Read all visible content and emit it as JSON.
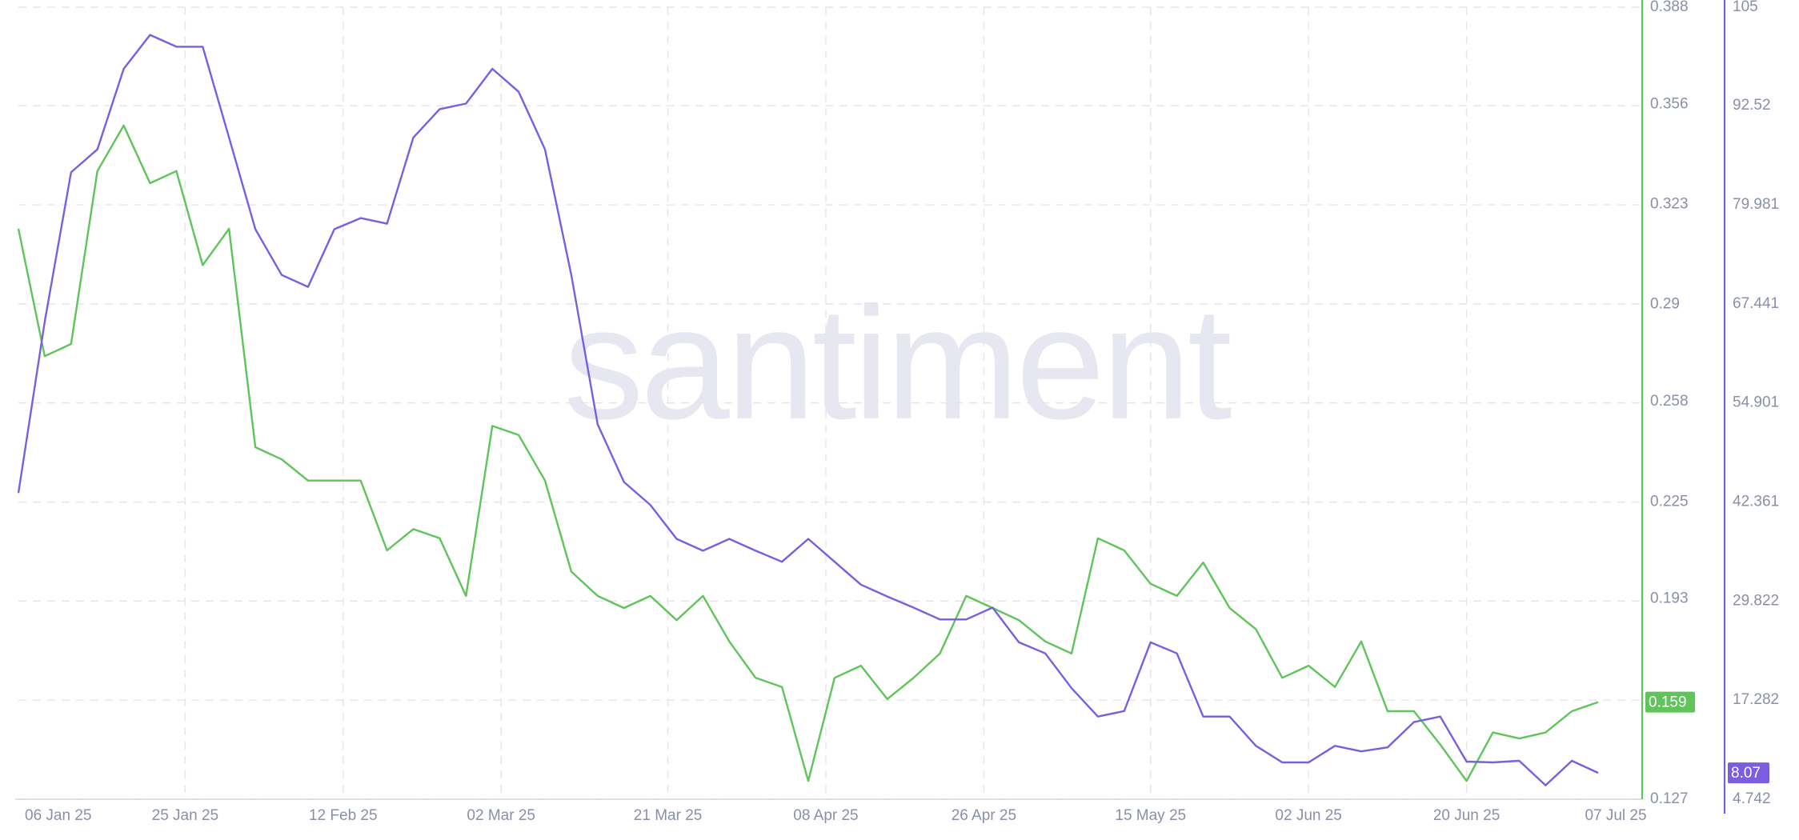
{
  "chart_data": {
    "type": "line",
    "watermark": "santiment",
    "x": [
      "2025-01-06",
      "2025-01-09",
      "2025-01-12",
      "2025-01-15",
      "2025-01-18",
      "2025-01-21",
      "2025-01-24",
      "2025-01-27",
      "2025-01-30",
      "2025-02-02",
      "2025-02-05",
      "2025-02-08",
      "2025-02-11",
      "2025-02-14",
      "2025-02-17",
      "2025-02-20",
      "2025-02-23",
      "2025-02-26",
      "2025-03-01",
      "2025-03-04",
      "2025-03-07",
      "2025-03-10",
      "2025-03-13",
      "2025-03-16",
      "2025-03-19",
      "2025-03-22",
      "2025-03-25",
      "2025-03-28",
      "2025-03-31",
      "2025-04-03",
      "2025-04-06",
      "2025-04-09",
      "2025-04-12",
      "2025-04-15",
      "2025-04-18",
      "2025-04-21",
      "2025-04-24",
      "2025-04-27",
      "2025-04-30",
      "2025-05-03",
      "2025-05-06",
      "2025-05-09",
      "2025-05-12",
      "2025-05-15",
      "2025-05-18",
      "2025-05-21",
      "2025-05-24",
      "2025-05-27",
      "2025-05-30",
      "2025-06-02",
      "2025-06-05",
      "2025-06-08",
      "2025-06-11",
      "2025-06-14",
      "2025-06-17",
      "2025-06-20",
      "2025-06-23",
      "2025-06-26",
      "2025-06-29",
      "2025-07-02",
      "2025-07-05"
    ],
    "xlim": [
      "2025-01-06",
      "2025-07-07"
    ],
    "xticks": [
      {
        "value": "2025-01-06",
        "label": "06 Jan 25"
      },
      {
        "value": "2025-01-25",
        "label": "25 Jan 25"
      },
      {
        "value": "2025-02-12",
        "label": "12 Feb 25"
      },
      {
        "value": "2025-03-02",
        "label": "02 Mar 25"
      },
      {
        "value": "2025-03-21",
        "label": "21 Mar 25"
      },
      {
        "value": "2025-04-08",
        "label": "08 Apr 25"
      },
      {
        "value": "2025-04-26",
        "label": "26 Apr 25"
      },
      {
        "value": "2025-05-15",
        "label": "15 May 25"
      },
      {
        "value": "2025-06-02",
        "label": "02 Jun 25"
      },
      {
        "value": "2025-06-20",
        "label": "20 Jun 25"
      },
      {
        "value": "2025-07-07",
        "label": "07 Jul 25"
      }
    ],
    "ylim": [
      0.127,
      0.388
    ],
    "yticks": [
      0.127,
      0.193,
      0.225,
      0.258,
      0.29,
      0.323,
      0.356,
      0.388
    ],
    "y2lim": [
      4.742,
      105
    ],
    "y2ticks": [
      4.742,
      17.282,
      29.822,
      42.361,
      54.901,
      67.441,
      79.981,
      92.52,
      105
    ],
    "grid": true,
    "series": [
      {
        "color": "#5fc45a",
        "values": [
          0.315,
          0.273,
          0.277,
          0.334,
          0.349,
          0.33,
          0.334,
          0.303,
          0.315,
          0.243,
          0.239,
          0.232,
          0.232,
          0.232,
          0.209,
          0.216,
          0.213,
          0.194,
          0.25,
          0.247,
          0.232,
          0.202,
          0.194,
          0.19,
          0.194,
          0.186,
          0.194,
          0.179,
          0.167,
          0.164,
          0.133,
          0.167,
          0.171,
          0.16,
          0.167,
          0.175,
          0.194,
          0.19,
          0.186,
          0.179,
          0.175,
          0.213,
          0.209,
          0.198,
          0.194,
          0.205,
          0.19,
          0.183,
          0.167,
          0.171,
          0.164,
          0.179,
          0.156,
          0.156,
          0.145,
          0.133,
          0.149,
          0.147,
          0.149,
          0.156,
          0.159
        ]
      },
      {
        "color": "#7a5ee0",
        "axis": "y2",
        "values": [
          43.5,
          65.2,
          84.1,
          87.0,
          97.2,
          101.5,
          100.0,
          100.0,
          88.5,
          76.9,
          71.1,
          69.6,
          76.9,
          78.3,
          77.6,
          88.5,
          92.1,
          92.8,
          97.2,
          94.3,
          87.0,
          71.1,
          52.2,
          44.9,
          42.0,
          37.7,
          36.2,
          37.7,
          36.2,
          34.8,
          37.7,
          34.8,
          31.9,
          30.4,
          29.0,
          27.5,
          27.5,
          29.0,
          24.6,
          23.2,
          18.8,
          15.2,
          15.9,
          24.6,
          23.2,
          15.2,
          15.2,
          11.5,
          9.4,
          9.4,
          11.5,
          10.8,
          11.3,
          14.5,
          15.2,
          9.5,
          9.4,
          9.6,
          6.5,
          9.6,
          8.07
        ]
      }
    ]
  }
}
